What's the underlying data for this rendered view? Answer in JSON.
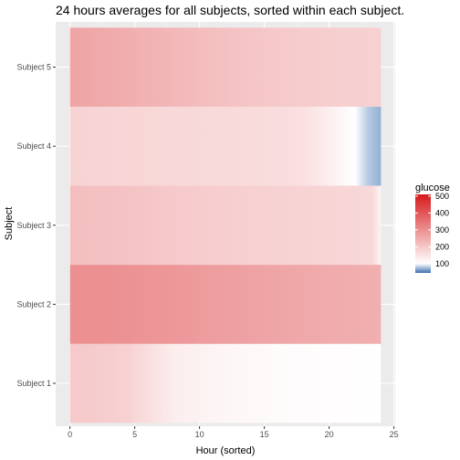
{
  "chart_data": {
    "type": "heatmap",
    "title": "24 hours averages for all subjects, sorted within each subject.",
    "xlabel": "Hour (sorted)",
    "ylabel": "Subject",
    "xlim": [
      0,
      24
    ],
    "x_ticks": [
      0,
      5,
      10,
      15,
      20,
      25
    ],
    "categories": [
      "Subject 1",
      "Subject 2",
      "Subject 3",
      "Subject 4",
      "Subject 5"
    ],
    "grid": true,
    "legend_position": "right",
    "legend": {
      "title": "glucose",
      "ticks": [
        100,
        200,
        300,
        400,
        500
      ],
      "range": [
        45,
        510
      ],
      "midpoint": 100,
      "color_low": "#3b6fb0",
      "color_mid": "#ffffff",
      "color_high": "#d7191c"
    },
    "series": [
      {
        "name": "Subject 1",
        "x": [
          0,
          2,
          4.5,
          6,
          8,
          12,
          16,
          20,
          24
        ],
        "values": [
          196,
          192,
          182,
          158,
          132,
          116,
          108,
          104,
          101
        ]
      },
      {
        "name": "Subject 2",
        "x": [
          0,
          3,
          8,
          12,
          16,
          20,
          24
        ],
        "values": [
          300,
          297,
          285,
          272,
          260,
          250,
          242
        ]
      },
      {
        "name": "Subject 3",
        "x": [
          0,
          4,
          8,
          12,
          16,
          20,
          23.3,
          24
        ],
        "values": [
          215,
          208,
          196,
          187,
          181,
          176,
          170,
          120
        ]
      },
      {
        "name": "Subject 4",
        "x": [
          0,
          8,
          16,
          18,
          20,
          22,
          23,
          24
        ],
        "values": [
          178,
          170,
          162,
          155,
          130,
          100,
          80,
          70
        ]
      },
      {
        "name": "Subject 5",
        "x": [
          0,
          3,
          8,
          12,
          16,
          20,
          24
        ],
        "values": [
          262,
          252,
          228,
          210,
          197,
          188,
          182
        ]
      }
    ]
  }
}
